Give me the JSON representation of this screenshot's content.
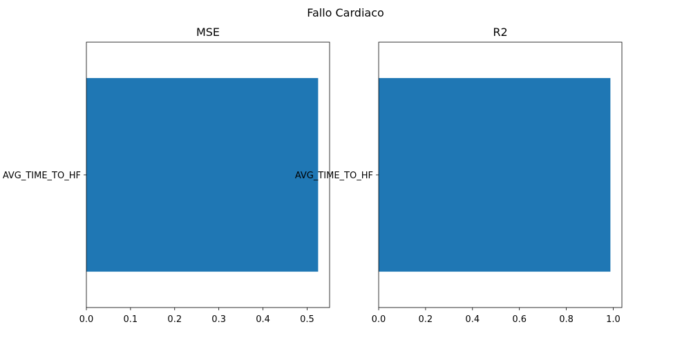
{
  "figure": {
    "title": "Fallo Cardiaco"
  },
  "chart_data": [
    {
      "type": "bar",
      "orientation": "horizontal",
      "title": "MSE",
      "categories": [
        "AVG_TIME_TO_HF"
      ],
      "values": [
        0.525
      ],
      "xlim": [
        0,
        0.551
      ],
      "xticks": [
        0.0,
        0.1,
        0.2,
        0.3,
        0.4,
        0.5
      ],
      "xtick_labels": [
        "0.0",
        "0.1",
        "0.2",
        "0.3",
        "0.4",
        "0.5"
      ],
      "xlabel": "",
      "ylabel": "",
      "grid": false,
      "color": "#1f77b4"
    },
    {
      "type": "bar",
      "orientation": "horizontal",
      "title": "R2",
      "categories": [
        "AVG_TIME_TO_HF"
      ],
      "values": [
        0.988
      ],
      "xlim": [
        0,
        1.037
      ],
      "xticks": [
        0.0,
        0.2,
        0.4,
        0.6,
        0.8,
        1.0
      ],
      "xtick_labels": [
        "0.0",
        "0.2",
        "0.4",
        "0.6",
        "0.8",
        "1.0"
      ],
      "xlabel": "",
      "ylabel": "",
      "grid": false,
      "color": "#1f77b4"
    }
  ]
}
